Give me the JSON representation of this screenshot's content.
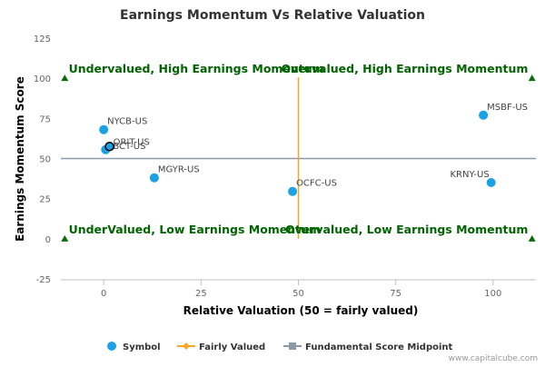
{
  "chart_data": {
    "type": "scatter",
    "title": "Earnings Momentum Vs Relative Valuation",
    "xlabel": "Relative Valuation (50 = fairly valued)",
    "ylabel": "Earnings Momentum Score",
    "xlim": [
      -11,
      111
    ],
    "ylim": [
      -25,
      125
    ],
    "x_ticks": [
      0,
      25,
      50,
      75,
      100
    ],
    "y_ticks": [
      -25,
      0,
      25,
      50,
      75,
      100,
      125
    ],
    "grid": false,
    "legend_position": "bottom",
    "series": [
      {
        "name": "Symbol",
        "color": "#1aa1e6",
        "points": [
          {
            "label": "NYCB-US",
            "x": 0,
            "y": 68
          },
          {
            "label": "PBCT-US",
            "x": 0.5,
            "y": 55.5
          },
          {
            "label": "ORIT-US",
            "x": 1.5,
            "y": 57.5
          },
          {
            "label": "MGYR-US",
            "x": 13,
            "y": 38
          },
          {
            "label": "OCFC-US",
            "x": 48.5,
            "y": 29.5
          },
          {
            "label": "MSBF-US",
            "x": 97.5,
            "y": 77
          },
          {
            "label": "KRNY-US",
            "x": 99.5,
            "y": 35
          }
        ]
      },
      {
        "name": "Fairly Valued",
        "color": "#f5a623",
        "x": 50
      },
      {
        "name": "Fundamental Score Midpoint",
        "color": "#8c99a6",
        "y": 50
      }
    ],
    "quadrant_labels": [
      {
        "text": "Undervalued, High Earnings Momentum",
        "x": -9,
        "y": 100,
        "align": "start"
      },
      {
        "text": "Overvalued, High Earnings Momentum",
        "x": 109,
        "y": 100,
        "align": "end"
      },
      {
        "text": "UnderValued, Low Earnings Momentum",
        "x": -9,
        "y": 0,
        "align": "start"
      },
      {
        "text": "Overvalued, Low Earnings Momentum",
        "x": 109,
        "y": 0,
        "align": "end"
      }
    ],
    "corner_markers": [
      {
        "x": -10,
        "y": 100
      },
      {
        "x": 110,
        "y": 100
      },
      {
        "x": -10,
        "y": 0
      },
      {
        "x": 110,
        "y": 0
      }
    ],
    "quadrant_label_color": "#006400",
    "marker_color": "#0b6b0b"
  },
  "credit": "www.capitalcube.com"
}
